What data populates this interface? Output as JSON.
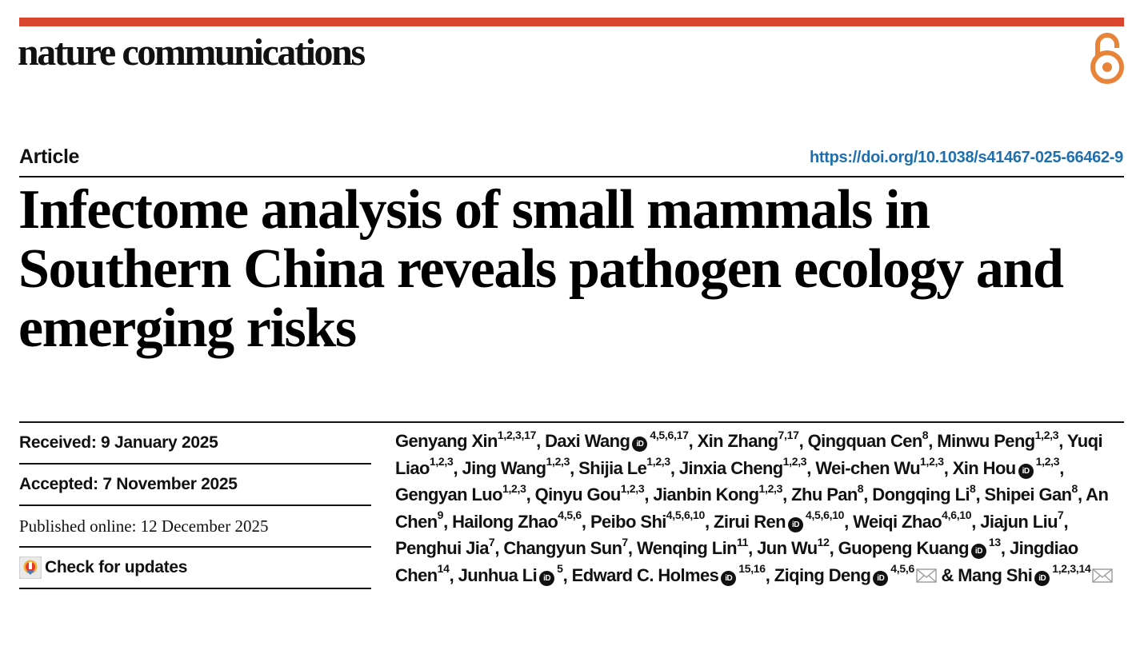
{
  "header": {
    "journal": "nature communications",
    "accent_color": "#d9452f",
    "open_access_icon": "open-lock-icon",
    "open_access_color": "#e8833a"
  },
  "article": {
    "type": "Article",
    "doi": "https://doi.org/10.1038/s41467-025-66462-9",
    "doi_color": "#1f6fae",
    "title": "Infectome analysis of small mammals in Southern China reveals pathogen ecology and emerging risks"
  },
  "meta": {
    "received": "Received: 9 January 2025",
    "accepted": "Accepted: 7 November 2025",
    "published": "Published online: 12 December 2025",
    "check_updates": "Check for updates",
    "check_updates_icon": "crossmark-icon"
  },
  "authors": [
    {
      "name": "Genyang Xin",
      "aff": "1,2,3,17",
      "orcid": false,
      "sep": ", "
    },
    {
      "name": "Daxi Wang",
      "aff": "4,5,6,17",
      "orcid": true,
      "sep": ", "
    },
    {
      "name": "Xin Zhang",
      "aff": "7,17",
      "orcid": false,
      "sep": ", "
    },
    {
      "name": "Qingquan Cen",
      "aff": "8",
      "orcid": false,
      "sep": ", "
    },
    {
      "name": "Minwu Peng",
      "aff": "1,2,3",
      "orcid": false,
      "sep": ", "
    },
    {
      "name": "Yuqi Liao",
      "aff": "1,2,3",
      "orcid": false,
      "sep": ", "
    },
    {
      "name": "Jing Wang",
      "aff": "1,2,3",
      "orcid": false,
      "sep": ", "
    },
    {
      "name": "Shijia Le",
      "aff": "1,2,3",
      "orcid": false,
      "sep": ", "
    },
    {
      "name": "Jinxia Cheng",
      "aff": "1,2,3",
      "orcid": false,
      "sep": ", "
    },
    {
      "name": "Wei-chen Wu",
      "aff": "1,2,3",
      "orcid": false,
      "sep": ", "
    },
    {
      "name": "Xin Hou",
      "aff": "1,2,3",
      "orcid": true,
      "sep": ", "
    },
    {
      "name": "Gengyan Luo",
      "aff": "1,2,3",
      "orcid": false,
      "sep": ", "
    },
    {
      "name": "Qinyu Gou",
      "aff": "1,2,3",
      "orcid": false,
      "sep": ", "
    },
    {
      "name": "Jianbin Kong",
      "aff": "1,2,3",
      "orcid": false,
      "sep": ", "
    },
    {
      "name": "Zhu Pan",
      "aff": "8",
      "orcid": false,
      "sep": ", "
    },
    {
      "name": "Dongqing Li",
      "aff": "8",
      "orcid": false,
      "sep": ", "
    },
    {
      "name": "Shipei Gan",
      "aff": "8",
      "orcid": false,
      "sep": ", "
    },
    {
      "name": "An Chen",
      "aff": "9",
      "orcid": false,
      "sep": ", "
    },
    {
      "name": "Hailong Zhao",
      "aff": "4,5,6",
      "orcid": false,
      "sep": ", "
    },
    {
      "name": "Peibo Shi",
      "aff": "4,5,6,10",
      "orcid": false,
      "sep": ", "
    },
    {
      "name": "Zirui Ren",
      "aff": "4,5,6,10",
      "orcid": true,
      "sep": ", "
    },
    {
      "name": "Weiqi Zhao",
      "aff": "4,6,10",
      "orcid": false,
      "sep": ", "
    },
    {
      "name": "Jiajun Liu",
      "aff": "7",
      "orcid": false,
      "sep": ", "
    },
    {
      "name": "Penghui Jia",
      "aff": "7",
      "orcid": false,
      "sep": ", "
    },
    {
      "name": "Changyun Sun",
      "aff": "7",
      "orcid": false,
      "sep": ", "
    },
    {
      "name": "Wenqing Lin",
      "aff": "11",
      "orcid": false,
      "sep": ", "
    },
    {
      "name": "Jun Wu",
      "aff": "12",
      "orcid": false,
      "sep": ", "
    },
    {
      "name": "Guopeng Kuang",
      "aff": "13",
      "orcid": true,
      "sep": ", "
    },
    {
      "name": "Jingdiao Chen",
      "aff": "14",
      "orcid": false,
      "sep": ", "
    },
    {
      "name": "Junhua Li",
      "aff": "5",
      "orcid": true,
      "sep": ", "
    },
    {
      "name": "Edward C. Holmes",
      "aff": "15,16",
      "orcid": true,
      "sep": ", "
    },
    {
      "name": "Ziqing Deng",
      "aff": "4,5,6",
      "orcid": true,
      "mail": true,
      "sep": " & "
    },
    {
      "name": "Mang Shi",
      "aff": "1,2,3,14",
      "orcid": true,
      "mail": true,
      "sep": ""
    }
  ],
  "orcid_label": "iD"
}
